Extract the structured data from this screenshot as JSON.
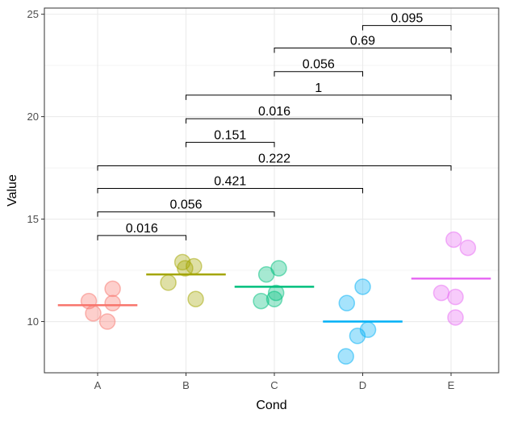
{
  "chart_data": {
    "type": "scatter",
    "xlabel": "Cond",
    "ylabel": "Value",
    "categories": [
      "A",
      "B",
      "C",
      "D",
      "E"
    ],
    "ylim": [
      7.5,
      25.3
    ],
    "yticks": [
      10,
      15,
      20,
      25
    ],
    "grid": true,
    "theme": "bw",
    "series": [
      {
        "category": "A",
        "color": "#F8766D",
        "mean": 10.8,
        "points": [
          [
            -0.1,
            11.0
          ],
          [
            -0.05,
            10.4
          ],
          [
            0.11,
            10.0
          ],
          [
            0.17,
            10.9
          ],
          [
            0.17,
            11.6
          ]
        ]
      },
      {
        "category": "B",
        "color": "#A3A500",
        "mean": 12.3,
        "points": [
          [
            -0.2,
            11.9
          ],
          [
            -0.04,
            12.9
          ],
          [
            -0.01,
            12.6
          ],
          [
            0.09,
            12.7
          ],
          [
            0.11,
            11.1
          ]
        ]
      },
      {
        "category": "C",
        "color": "#00BF7D",
        "mean": 11.7,
        "points": [
          [
            -0.15,
            11.0
          ],
          [
            -0.09,
            12.3
          ],
          [
            0.0,
            11.1
          ],
          [
            0.02,
            11.4
          ],
          [
            0.05,
            12.6
          ]
        ]
      },
      {
        "category": "D",
        "color": "#00B0F6",
        "mean": 10.0,
        "points": [
          [
            -0.19,
            8.3
          ],
          [
            -0.18,
            10.9
          ],
          [
            -0.06,
            9.3
          ],
          [
            0.0,
            11.7
          ],
          [
            0.06,
            9.6
          ]
        ]
      },
      {
        "category": "E",
        "color": "#E76BF3",
        "mean": 12.1,
        "points": [
          [
            -0.11,
            11.4
          ],
          [
            0.03,
            14.0
          ],
          [
            0.05,
            11.2
          ],
          [
            0.05,
            10.2
          ],
          [
            0.19,
            13.6
          ]
        ]
      }
    ],
    "comparisons": [
      {
        "from": "A",
        "to": "B",
        "y": 14.2,
        "label": "0.016"
      },
      {
        "from": "A",
        "to": "C",
        "y": 15.35,
        "label": "0.056"
      },
      {
        "from": "A",
        "to": "D",
        "y": 16.5,
        "label": "0.421"
      },
      {
        "from": "A",
        "to": "E",
        "y": 17.6,
        "label": "0.222"
      },
      {
        "from": "B",
        "to": "C",
        "y": 18.75,
        "label": "0.151"
      },
      {
        "from": "B",
        "to": "D",
        "y": 19.9,
        "label": "0.016"
      },
      {
        "from": "B",
        "to": "E",
        "y": 21.05,
        "label": "1"
      },
      {
        "from": "C",
        "to": "D",
        "y": 22.2,
        "label": "0.056"
      },
      {
        "from": "C",
        "to": "E",
        "y": 23.35,
        "label": "0.69"
      },
      {
        "from": "D",
        "to": "E",
        "y": 24.45,
        "label": "0.095"
      }
    ]
  }
}
